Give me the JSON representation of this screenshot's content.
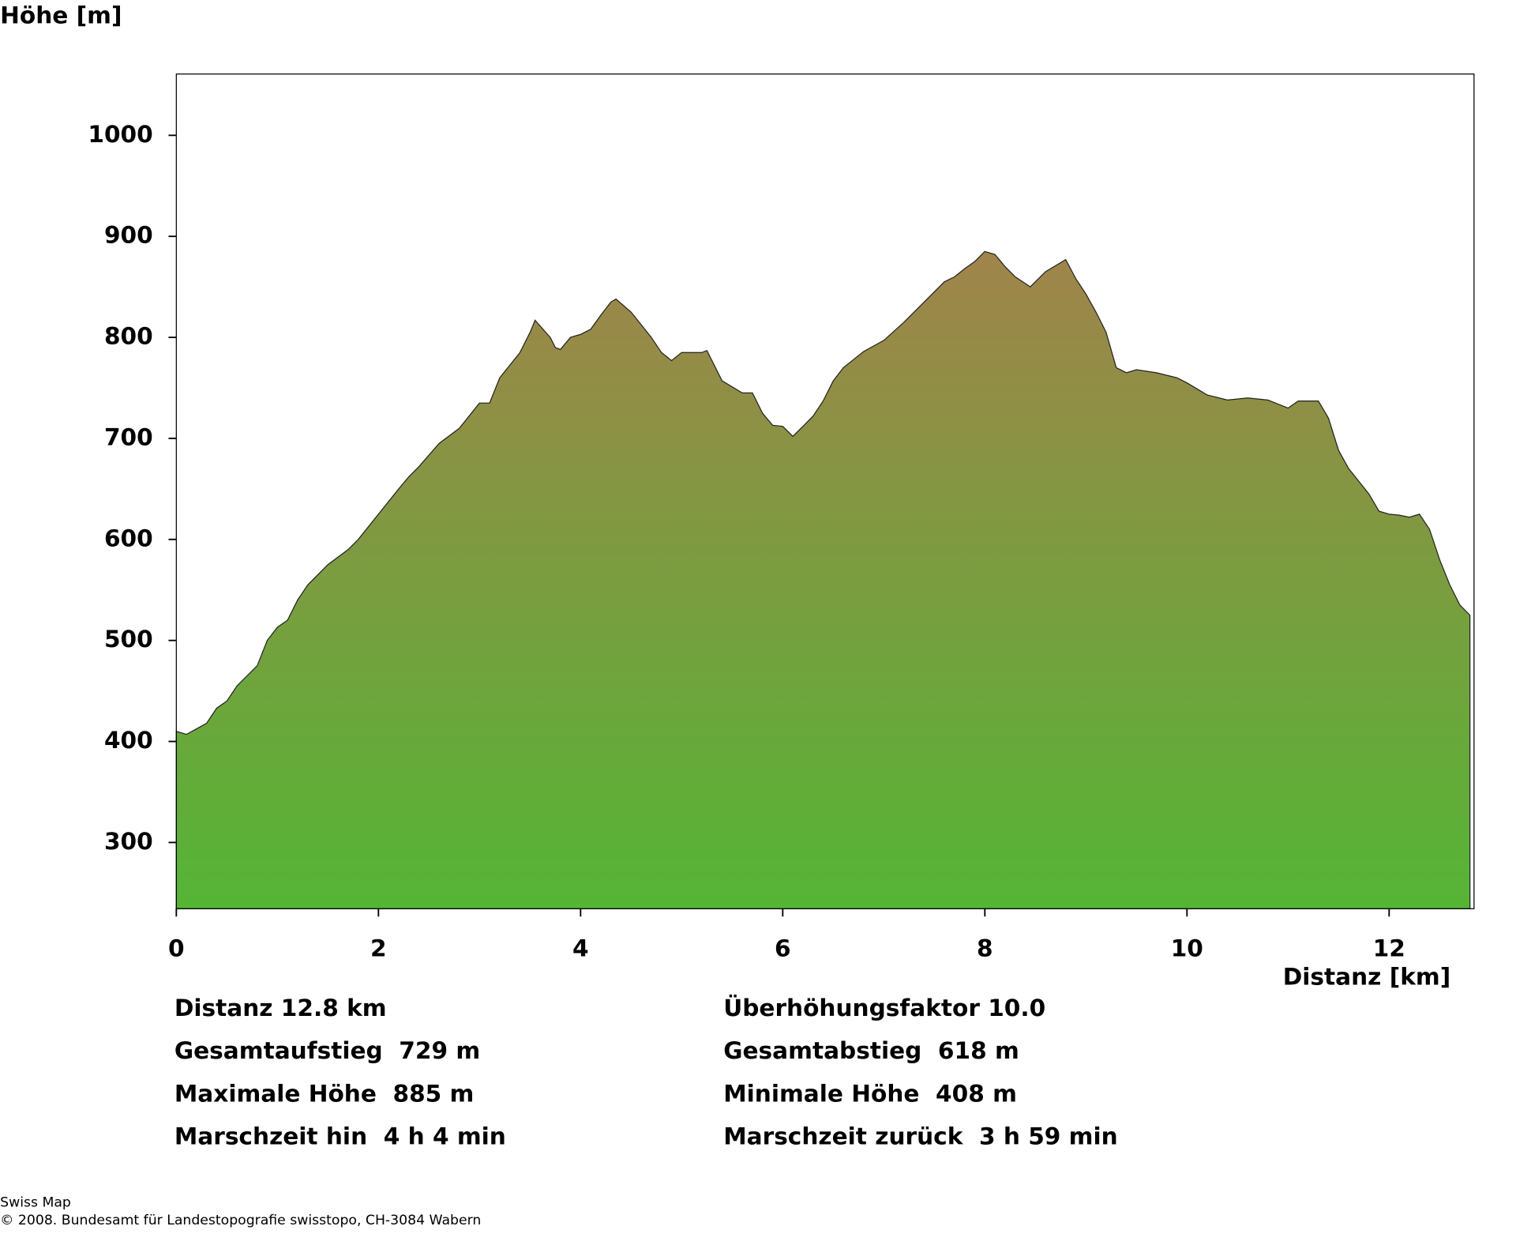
{
  "chart_data": {
    "type": "area",
    "y_label": "Höhe [m]",
    "x_label": "Distanz [km]",
    "x": [
      0,
      0.1,
      0.3,
      0.4,
      0.5,
      0.6,
      0.8,
      0.9,
      1.0,
      1.1,
      1.2,
      1.3,
      1.5,
      1.7,
      1.8,
      2.0,
      2.2,
      2.3,
      2.4,
      2.6,
      2.8,
      3.0,
      3.1,
      3.2,
      3.4,
      3.5,
      3.55,
      3.7,
      3.75,
      3.8,
      3.9,
      4.0,
      4.1,
      4.2,
      4.3,
      4.35,
      4.5,
      4.7,
      4.8,
      4.9,
      5.0,
      5.2,
      5.25,
      5.4,
      5.6,
      5.7,
      5.8,
      5.9,
      6.0,
      6.1,
      6.2,
      6.3,
      6.4,
      6.5,
      6.6,
      6.7,
      6.8,
      7.0,
      7.2,
      7.4,
      7.6,
      7.7,
      7.8,
      7.9,
      8.0,
      8.1,
      8.2,
      8.3,
      8.45,
      8.6,
      8.8,
      8.9,
      9.0,
      9.1,
      9.2,
      9.3,
      9.4,
      9.5,
      9.7,
      9.9,
      10.0,
      10.2,
      10.4,
      10.6,
      10.8,
      11.0,
      11.1,
      11.3,
      11.4,
      11.5,
      11.6,
      11.8,
      11.9,
      12.0,
      12.1,
      12.2,
      12.3,
      12.4,
      12.5,
      12.6,
      12.7,
      12.8
    ],
    "values": [
      410,
      407,
      418,
      433,
      440,
      455,
      475,
      500,
      513,
      520,
      540,
      555,
      575,
      590,
      600,
      625,
      650,
      662,
      672,
      695,
      710,
      735,
      735,
      760,
      785,
      805,
      817,
      800,
      790,
      788,
      800,
      803,
      808,
      822,
      835,
      838,
      825,
      800,
      785,
      777,
      785,
      785,
      787,
      757,
      745,
      745,
      725,
      713,
      712,
      702,
      712,
      722,
      737,
      757,
      770,
      778,
      786,
      797,
      815,
      835,
      855,
      860,
      868,
      875,
      885,
      882,
      870,
      860,
      850,
      865,
      877,
      858,
      843,
      825,
      805,
      770,
      765,
      768,
      765,
      760,
      755,
      743,
      738,
      740,
      738,
      730,
      737,
      737,
      720,
      688,
      670,
      645,
      628,
      625,
      624,
      622,
      625,
      610,
      580,
      555,
      535,
      525
    ],
    "color_top": "#a0844a",
    "color_bottom": "#55b535",
    "xlim": [
      0,
      12.84
    ],
    "ylim": [
      234.4,
      1060.7
    ],
    "xticks": [
      0,
      2,
      4,
      6,
      8,
      10,
      12
    ],
    "yticks": [
      300,
      400,
      500,
      600,
      700,
      800,
      900,
      1000
    ],
    "stats_left": [
      "Distanz 12.8 km",
      "Gesamtaufstieg  729 m",
      "Maximale Höhe  885 m",
      "Marschzeit hin  4 h 4 min"
    ],
    "stats_right": [
      "Überhöhungsfaktor 10.0",
      "Gesamtabstieg  618 m",
      "Minimale Höhe  408 m",
      "Marschzeit zurück  3 h 59 min"
    ],
    "footer": [
      "Swiss Map",
      "© 2008. Bundesamt für Landestopografie swisstopo, CH-3084 Wabern"
    ]
  }
}
